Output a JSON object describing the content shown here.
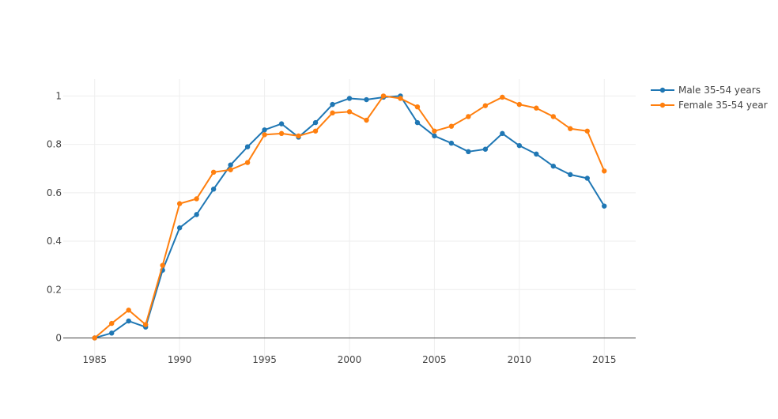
{
  "chart_data": {
    "type": "line",
    "title": "",
    "xlabel": "",
    "ylabel": "",
    "xlim": [
      1983.15,
      2016.85
    ],
    "ylim": [
      -0.09,
      1.07
    ],
    "x_ticks": [
      1985,
      1990,
      1995,
      2000,
      2005,
      2010,
      2015
    ],
    "x_tick_labels": [
      "1985",
      "1990",
      "1995",
      "2000",
      "2005",
      "2010",
      "2015"
    ],
    "y_ticks": [
      0,
      0.2,
      0.4,
      0.6,
      0.8,
      1
    ],
    "y_tick_labels": [
      "0",
      "0.2",
      "0.4",
      "0.6",
      "0.8",
      "1"
    ],
    "grid": true,
    "legend_position": "top-right",
    "x": [
      1985,
      1986,
      1987,
      1988,
      1989,
      1990,
      1991,
      1992,
      1993,
      1994,
      1995,
      1996,
      1997,
      1998,
      1999,
      2000,
      2001,
      2002,
      2003,
      2004,
      2005,
      2006,
      2007,
      2008,
      2009,
      2010,
      2011,
      2012,
      2013,
      2014,
      2015
    ],
    "series": [
      {
        "name": "Male 35-54 years",
        "color": "#1f77b4",
        "values": [
          0.0,
          0.02,
          0.07,
          0.045,
          0.28,
          0.455,
          0.51,
          0.615,
          0.715,
          0.79,
          0.86,
          0.885,
          0.83,
          0.89,
          0.965,
          0.99,
          0.985,
          0.995,
          1.0,
          0.89,
          0.835,
          0.805,
          0.77,
          0.78,
          0.845,
          0.795,
          0.76,
          0.71,
          0.675,
          0.66,
          0.545
        ]
      },
      {
        "name": "Female 35-54 year",
        "color": "#ff7f0e",
        "values": [
          0.0,
          0.06,
          0.115,
          0.055,
          0.3,
          0.555,
          0.575,
          0.685,
          0.695,
          0.725,
          0.84,
          0.845,
          0.835,
          0.855,
          0.93,
          0.935,
          0.9,
          1.0,
          0.99,
          0.955,
          0.855,
          0.875,
          0.915,
          0.96,
          0.995,
          0.965,
          0.95,
          0.915,
          0.865,
          0.855,
          0.69
        ]
      }
    ]
  }
}
